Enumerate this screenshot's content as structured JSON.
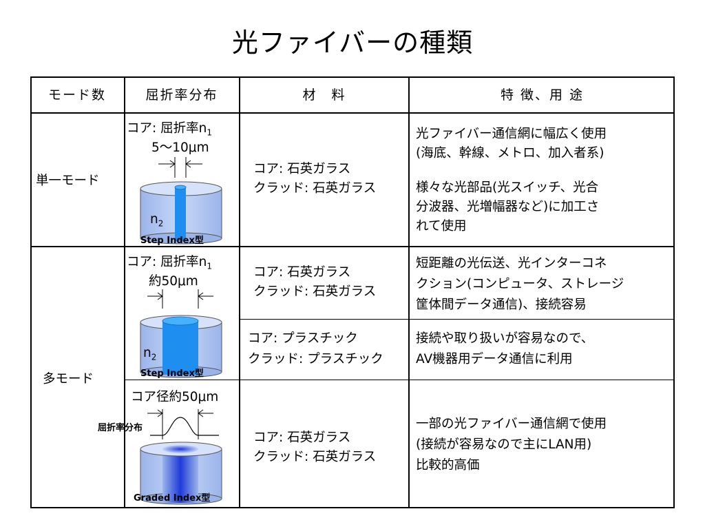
{
  "title": "光ファイバーの種類",
  "headers": [
    "モード数",
    "屈折率分布",
    "材　料",
    "特 徴、用 途"
  ],
  "single_mode": {
    "mode": "単一モード",
    "core_label": "コア: 屈折率n",
    "core_sub": "1",
    "size": "5～10μm",
    "n2": "n",
    "n2_sub": "2",
    "type_label": "Step Index型",
    "material": [
      "コア: 石英ガラス",
      "クラッド: 石英ガラス"
    ],
    "features_1": [
      "光ファイバー通信網に幅広く使用",
      "(海底、幹線、メトロ、加入者系)"
    ],
    "features_2": [
      "様々な光部品(光スイッチ、光合",
      "分波器、光増幅器など)に加工さ",
      "れて使用"
    ]
  },
  "multi_mode": {
    "mode": "多モード",
    "core_label": "コア: 屈折率n",
    "core_sub": "1",
    "size": "約50μm",
    "n2": "n",
    "n2_sub": "2",
    "type_label": "Step Index型",
    "material_a": [
      "コア: 石英ガラス",
      "クラッド: 石英ガラス"
    ],
    "features_a": [
      "短距離の光伝送、光インターコネ",
      "クション(コンピュータ、ストレージ",
      "筐体間データ通信)、接続容易"
    ],
    "material_b": [
      "コア: プラスチック",
      "クラッド: プラスチック"
    ],
    "features_b": [
      "接続や取り扱いが容易なので、",
      "AV機器用データ通信に利用"
    ],
    "graded_size": "コア径約50μm",
    "graded_profile_label": "屈折率分布",
    "graded_type_label": "Graded Index型",
    "material_c": [
      "コア: 石英ガラス",
      "クラッド: 石英ガラス"
    ],
    "features_c": [
      "一部の光ファイバー通信網で使用",
      "(接続が容易なので主にLAN用)",
      "比較的高価"
    ]
  }
}
